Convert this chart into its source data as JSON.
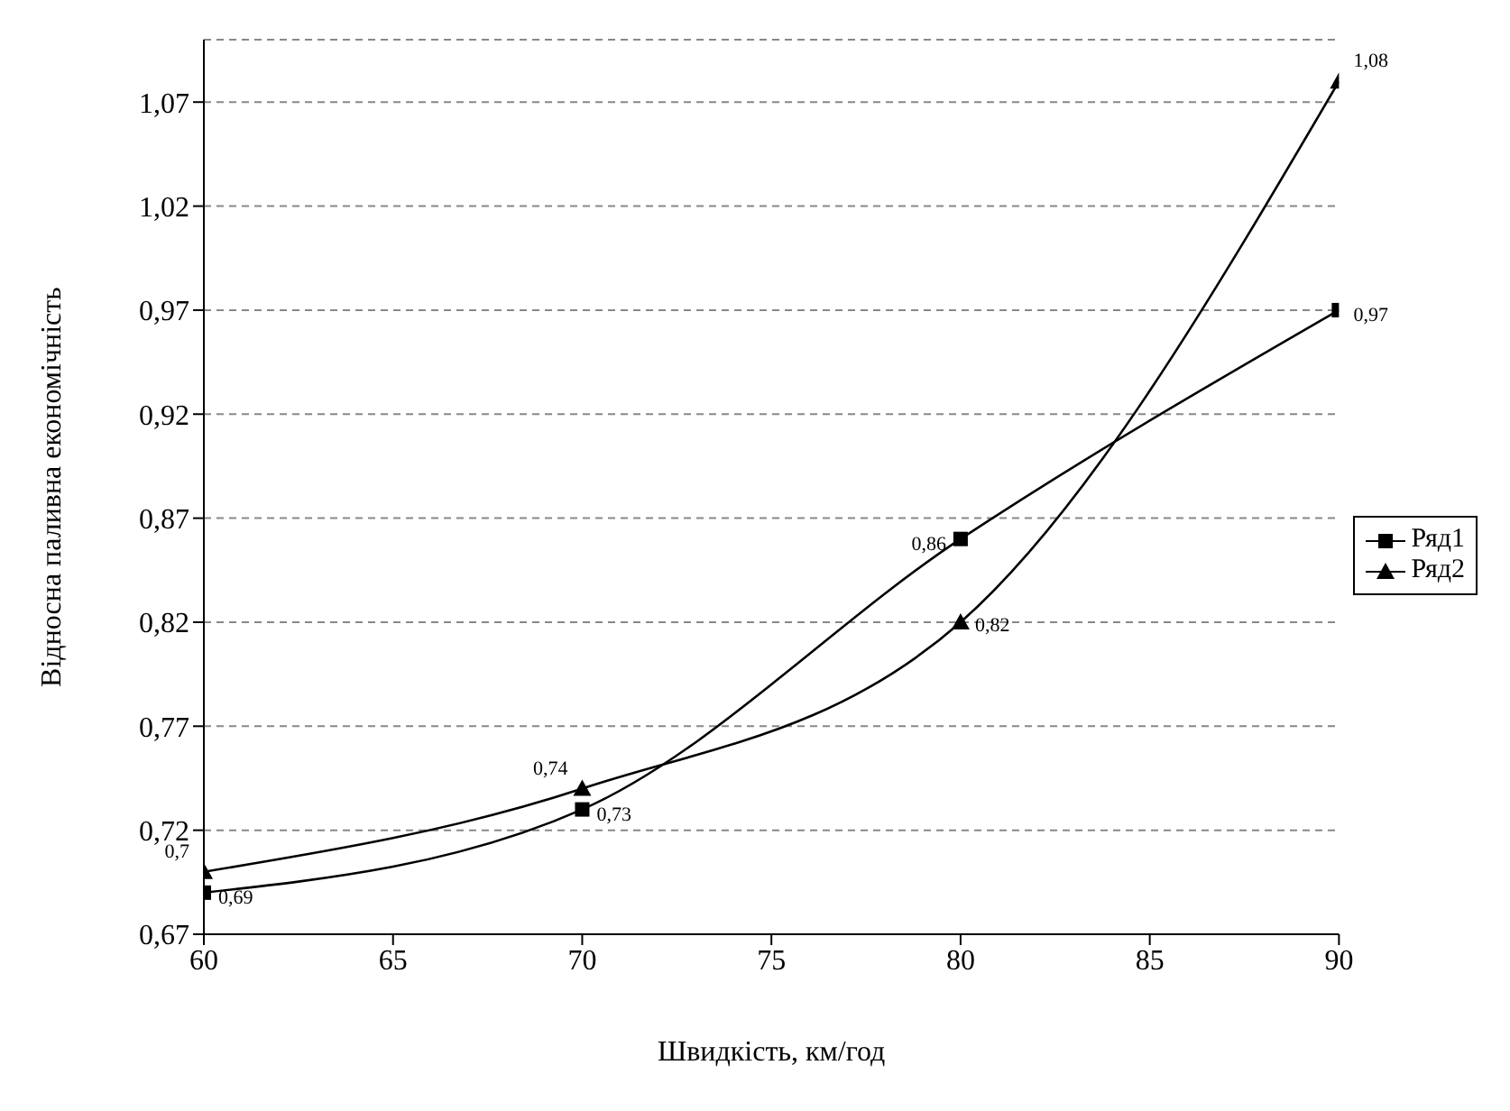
{
  "chart_data": {
    "type": "line",
    "xlabel": "Швидкість, км/год",
    "ylabel": "Відносна паливна економічність",
    "x": [
      60,
      70,
      80,
      90
    ],
    "series": [
      {
        "name": "Ряд1",
        "color": "#000000",
        "marker": "square",
        "values": [
          0.69,
          0.73,
          0.86,
          0.97
        ],
        "value_labels": [
          "0,69",
          "0,73",
          "0,86",
          "0,97"
        ]
      },
      {
        "name": "Ряд2",
        "color": "#000000",
        "marker": "triangle",
        "values": [
          0.7,
          0.74,
          0.82,
          1.08
        ],
        "value_labels": [
          "0,7",
          "0,74",
          "0,82",
          "1,08"
        ]
      }
    ],
    "xlim": [
      60,
      90
    ],
    "xticks": [
      60,
      65,
      70,
      75,
      80,
      85,
      90
    ],
    "ylim": [
      0.67,
      1.1
    ],
    "yticks": [
      {
        "value": 0.67,
        "label": "0,67"
      },
      {
        "value": 0.72,
        "label": "0,72"
      },
      {
        "value": 0.77,
        "label": "0,77"
      },
      {
        "value": 0.82,
        "label": "0,82"
      },
      {
        "value": 0.87,
        "label": "0,87"
      },
      {
        "value": 0.92,
        "label": "0,92"
      },
      {
        "value": 0.97,
        "label": "0,97"
      },
      {
        "value": 1.02,
        "label": "1,02"
      },
      {
        "value": 1.07,
        "label": "1,07"
      }
    ],
    "grid": "y",
    "legend": "right",
    "line_style": "solid"
  }
}
